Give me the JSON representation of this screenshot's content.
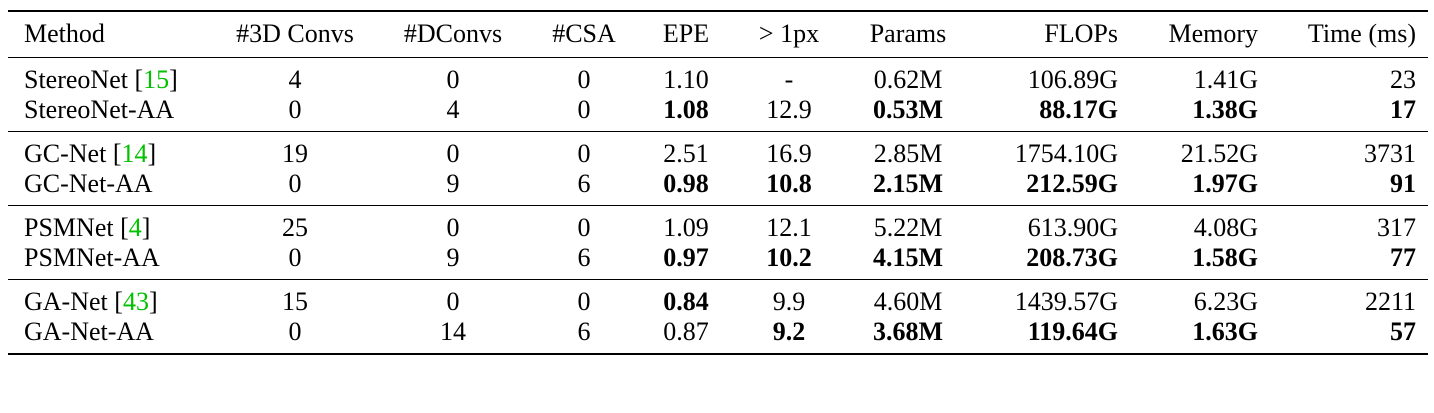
{
  "table": {
    "columns": [
      "Method",
      "#3D Convs",
      "#DConvs",
      "#CSA",
      "EPE",
      "> 1px",
      "Params",
      "FLOPs",
      "Memory",
      "Time (ms)"
    ],
    "groups": [
      {
        "rows": [
          {
            "method": "StereoNet",
            "cite": "15",
            "cells": [
              "4",
              "0",
              "0",
              "1.10",
              "-",
              "0.62M",
              "106.89G",
              "1.41G",
              "23"
            ],
            "bold": []
          },
          {
            "method": "StereoNet-AA",
            "cite": "",
            "cells": [
              "0",
              "4",
              "0",
              "1.08",
              "12.9",
              "0.53M",
              "88.17G",
              "1.38G",
              "17"
            ],
            "bold": [
              3,
              5,
              6,
              7,
              8
            ]
          }
        ]
      },
      {
        "rows": [
          {
            "method": "GC-Net",
            "cite": "14",
            "cells": [
              "19",
              "0",
              "0",
              "2.51",
              "16.9",
              "2.85M",
              "1754.10G",
              "21.52G",
              "3731"
            ],
            "bold": []
          },
          {
            "method": "GC-Net-AA",
            "cite": "",
            "cells": [
              "0",
              "9",
              "6",
              "0.98",
              "10.8",
              "2.15M",
              "212.59G",
              "1.97G",
              "91"
            ],
            "bold": [
              3,
              4,
              5,
              6,
              7,
              8
            ]
          }
        ]
      },
      {
        "rows": [
          {
            "method": "PSMNet",
            "cite": "4",
            "cells": [
              "25",
              "0",
              "0",
              "1.09",
              "12.1",
              "5.22M",
              "613.90G",
              "4.08G",
              "317"
            ],
            "bold": []
          },
          {
            "method": "PSMNet-AA",
            "cite": "",
            "cells": [
              "0",
              "9",
              "6",
              "0.97",
              "10.2",
              "4.15M",
              "208.73G",
              "1.58G",
              "77"
            ],
            "bold": [
              3,
              4,
              5,
              6,
              7,
              8
            ]
          }
        ]
      },
      {
        "rows": [
          {
            "method": "GA-Net",
            "cite": "43",
            "cells": [
              "15",
              "0",
              "0",
              "0.84",
              "9.9",
              "4.60M",
              "1439.57G",
              "6.23G",
              "2211"
            ],
            "bold": [
              3
            ]
          },
          {
            "method": "GA-Net-AA",
            "cite": "",
            "cells": [
              "0",
              "14",
              "6",
              "0.87",
              "9.2",
              "3.68M",
              "119.64G",
              "1.63G",
              "57"
            ],
            "bold": [
              4,
              5,
              6,
              7,
              8
            ]
          }
        ]
      }
    ]
  },
  "colors": {
    "citation": "#00c000"
  }
}
